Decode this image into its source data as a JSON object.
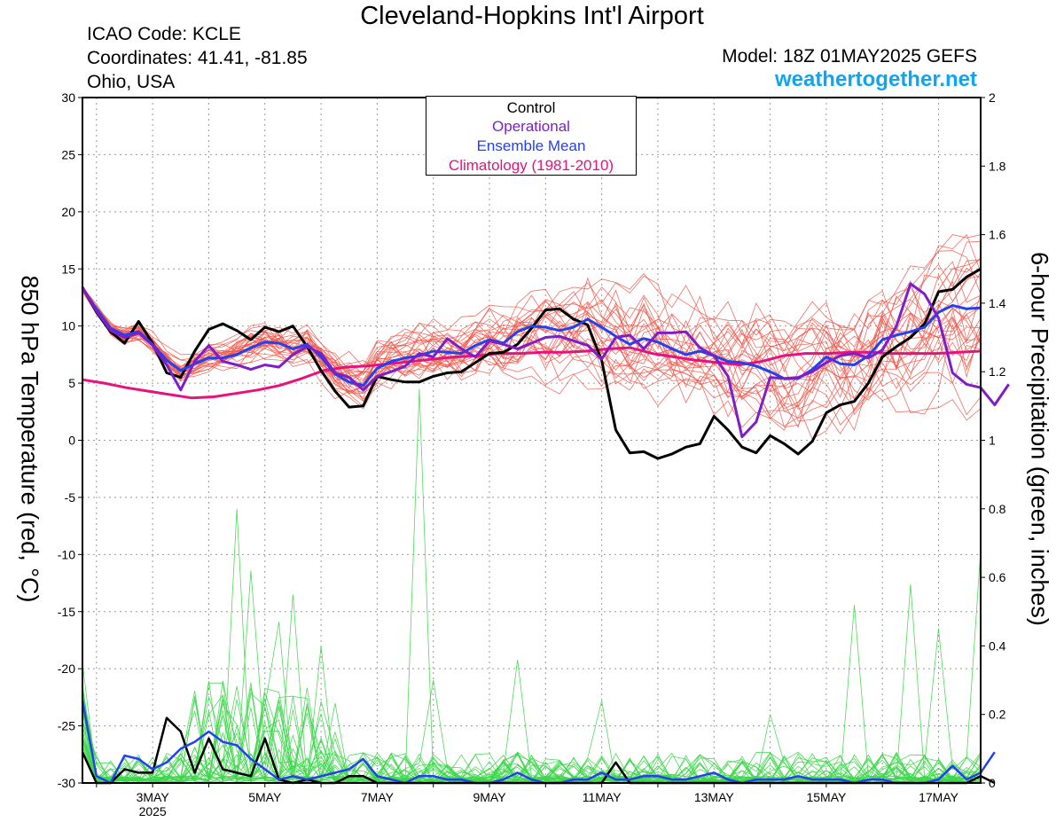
{
  "header": {
    "title": "Cleveland-Hopkins Int'l Airport",
    "icao": "ICAO Code: KCLE",
    "coordinates": "Coordinates: 41.41, -81.85",
    "region": "Ohio, USA",
    "model": "Model: 18Z 01MAY2025 GEFS",
    "site": "weathertogether.net"
  },
  "legend": {
    "control": "Control",
    "operational": "Operational",
    "ensemble_mean": "Ensemble Mean",
    "climatology": "Climatology (1981-2010)"
  },
  "colors": {
    "control": "#000000",
    "operational": "#7d1ec8",
    "ensemble_mean": "#2341ee",
    "climatology": "#e6127e",
    "members_temp": "#f0574a",
    "members_precip": "#3dd64a",
    "site": "#12a4ee"
  },
  "chart_data": {
    "type": "line",
    "title": "Cleveland-Hopkins Int'l Airport",
    "ylabel": "850 hPa Temperature (red, °C)",
    "y2label": "6-hour Precipitation (green, inches)",
    "x_unit": "days since 00Z 01MAY2025",
    "xlim": [
      0.75,
      16.75
    ],
    "ylim": [
      -30,
      30
    ],
    "y2lim": [
      0,
      2
    ],
    "yticks": [
      -30,
      -25,
      -20,
      -15,
      -10,
      -5,
      0,
      5,
      10,
      15,
      20,
      25,
      30
    ],
    "y2ticks": [
      0,
      0.2,
      0.4,
      0.6,
      0.8,
      1,
      1.2,
      1.4,
      1.6,
      1.8,
      2
    ],
    "xticks": [
      {
        "x": 2,
        "label": "3MAY",
        "sub": "2025"
      },
      {
        "x": 4,
        "label": "5MAY",
        "sub": ""
      },
      {
        "x": 6,
        "label": "7MAY",
        "sub": ""
      },
      {
        "x": 8,
        "label": "9MAY",
        "sub": ""
      },
      {
        "x": 10,
        "label": "11MAY",
        "sub": ""
      },
      {
        "x": 12,
        "label": "13MAY",
        "sub": ""
      },
      {
        "x": 14,
        "label": "15MAY",
        "sub": ""
      },
      {
        "x": 16,
        "label": "17MAY",
        "sub": ""
      }
    ],
    "grid": true,
    "legend_position": "top-center",
    "step_days": 0.25,
    "start_day": 0.75,
    "series": [
      {
        "name": "Control",
        "axis": "temp",
        "values": [
          13.4,
          11.2,
          9.5,
          8.5,
          10.4,
          8.5,
          5.9,
          5.5,
          7.8,
          9.7,
          10.2,
          9.6,
          8.8,
          9.9,
          9.5,
          10.0,
          8.2,
          6.1,
          4.3,
          2.9,
          3.0,
          5.6,
          5.3,
          5.1,
          5.1,
          5.6,
          5.9,
          6.0,
          6.8,
          7.6,
          7.7,
          8.4,
          9.8,
          11.4,
          11.5,
          10.6,
          10.1,
          7.0,
          0.9,
          -1.1,
          -1.0,
          -1.6,
          -1.2,
          -0.6,
          -0.3,
          2.1,
          0.9,
          -0.6,
          -1.1,
          0.4,
          -0.3,
          -1.2,
          -0.1,
          2.4,
          3.1,
          3.4,
          5.0,
          7.3,
          8.2,
          9.0,
          10.2,
          13.0,
          13.2,
          14.3,
          15.0
        ]
      },
      {
        "name": "Operational",
        "axis": "temp",
        "values": [
          13.4,
          11.3,
          9.6,
          9.0,
          9.4,
          8.3,
          6.6,
          4.4,
          6.9,
          8.3,
          6.9,
          6.6,
          6.2,
          6.6,
          6.4,
          7.5,
          8.2,
          7.6,
          5.9,
          5.5,
          4.4,
          5.6,
          6.0,
          6.5,
          7.6,
          7.3,
          8.9,
          8.0,
          7.3,
          8.7,
          8.4,
          8.0,
          8.5,
          9.0,
          9.1,
          8.7,
          8.3,
          7.1,
          9.0,
          9.2,
          8.0,
          9.4,
          9.4,
          9.5,
          8.1,
          7.4,
          5.6,
          0.3,
          1.6,
          5.5,
          5.4,
          5.5,
          6.0,
          6.8,
          7.4,
          7.6,
          7.2,
          7.9,
          10.0,
          13.7,
          12.8,
          10.7,
          5.9,
          4.9,
          4.6,
          3.1,
          4.9
        ]
      },
      {
        "name": "Ensemble Mean",
        "axis": "temp",
        "values": [
          13.3,
          11.5,
          9.8,
          9.2,
          9.5,
          8.4,
          7.0,
          6.1,
          6.7,
          7.2,
          7.2,
          7.5,
          8.1,
          8.6,
          8.5,
          8.0,
          8.4,
          7.3,
          5.8,
          5.1,
          4.8,
          6.3,
          6.9,
          7.2,
          7.4,
          7.8,
          7.7,
          7.6,
          8.3,
          8.8,
          8.5,
          9.5,
          10.0,
          9.9,
          9.6,
          9.9,
          10.6,
          9.9,
          9.1,
          8.4,
          8.9,
          8.6,
          8.0,
          7.5,
          7.8,
          7.4,
          6.9,
          6.8,
          6.5,
          6.0,
          5.4,
          5.4,
          6.2,
          7.3,
          6.7,
          6.6,
          7.4,
          8.8,
          9.2,
          9.5,
          9.9,
          11.2,
          11.8,
          11.5,
          11.6
        ]
      },
      {
        "name": "Climatology (1981-2010)",
        "axis": "temp",
        "values": [
          5.3,
          5.0,
          4.6,
          4.3,
          4.0,
          3.7,
          3.8,
          4.1,
          4.4,
          4.8,
          5.4,
          6.1,
          6.4,
          6.5,
          6.7,
          6.9,
          7.1,
          7.3,
          7.4,
          7.6,
          7.6,
          7.7,
          7.7,
          7.8,
          8.0,
          8.1,
          7.6,
          7.3,
          7.0,
          6.8,
          6.6,
          6.9,
          7.4,
          7.6,
          7.6,
          7.7,
          7.7,
          7.6,
          7.6,
          7.6,
          7.7,
          7.8
        ]
      },
      {
        "name": "Control Precip",
        "axis": "precip",
        "values": [
          0.09,
          0.0,
          0.0,
          0.04,
          0.03,
          0.03,
          0.19,
          0.15,
          0.03,
          0.13,
          0.04,
          0.03,
          0.02,
          0.13,
          0.01,
          0.0,
          0.01,
          0.0,
          0.0,
          0.02,
          0.02,
          0.0,
          0.0,
          0.0,
          0.0,
          0.0,
          0.0,
          0.0,
          0.0,
          0.0,
          0.0,
          0.0,
          0.0,
          0.0,
          0.0,
          0.0,
          0.0,
          0.0,
          0.06,
          0.0,
          0.0,
          0.0,
          0.0,
          0.0,
          0.0,
          0.0,
          0.0,
          0.0,
          0.0,
          0.0,
          0.0,
          0.0,
          0.0,
          0.0,
          0.0,
          0.0,
          0.0,
          0.0,
          0.0,
          0.0,
          0.0,
          0.0,
          0.0,
          0.0,
          0.02,
          0.0
        ]
      },
      {
        "name": "Ensemble Mean Precip",
        "axis": "precip",
        "values": [
          0.24,
          0.02,
          0.0,
          0.08,
          0.07,
          0.04,
          0.06,
          0.1,
          0.12,
          0.15,
          0.12,
          0.11,
          0.07,
          0.04,
          0.01,
          0.02,
          0.01,
          0.02,
          0.03,
          0.04,
          0.07,
          0.02,
          0.01,
          0.0,
          0.02,
          0.02,
          0.01,
          0.01,
          0.0,
          0.0,
          0.01,
          0.03,
          0.01,
          0.0,
          0.0,
          0.01,
          0.01,
          0.03,
          0.01,
          0.01,
          0.02,
          0.02,
          0.01,
          0.01,
          0.02,
          0.03,
          0.01,
          0.0,
          0.01,
          0.01,
          0.01,
          0.02,
          0.01,
          0.01,
          0.01,
          0.0,
          0.01,
          0.01,
          0.0,
          0.0,
          0.0,
          0.01,
          0.05,
          0.01,
          0.03,
          0.09
        ]
      }
    ]
  }
}
